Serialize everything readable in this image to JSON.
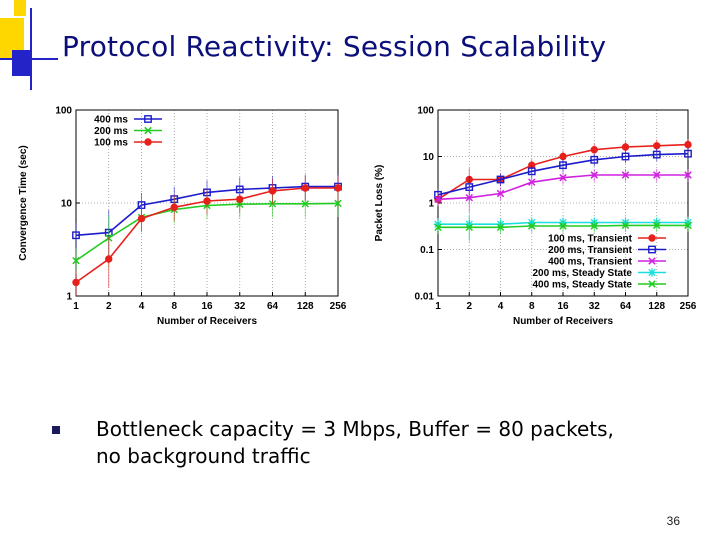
{
  "slide": {
    "title": "Protocol Reactivity: Session Scalability",
    "bullet": "Bottleneck capacity = 3 Mbps, Buffer = 80 packets, no background traffic",
    "slide_number": "36"
  },
  "colors": {
    "title": "#0b0f7a",
    "deco_yellow": "#ffd700",
    "deco_blue": "#2323c8",
    "red": "#e8201c",
    "blue": "#1c1ccc",
    "green": "#22cc22",
    "magenta": "#d020e0",
    "cyan": "#18e0e0"
  },
  "chart_data": [
    {
      "type": "line",
      "xlabel": "Number of Receivers",
      "ylabel": "Convergence Time (sec)",
      "x_scale": "log2",
      "y_scale": "log10",
      "ylim": [
        1,
        100
      ],
      "x": [
        1,
        2,
        4,
        8,
        16,
        32,
        64,
        128,
        256
      ],
      "x_tick_labels": [
        "1",
        "2",
        "4",
        "8",
        "16",
        "32",
        "64",
        "128",
        "256"
      ],
      "y_tick_labels": [
        "1",
        "10",
        "100"
      ],
      "y_ticks": [
        1,
        10,
        100
      ],
      "grid": true,
      "legend_position": "top-left",
      "series": [
        {
          "name": "400 ms",
          "color": "#1c1ccc",
          "marker": "square",
          "values": [
            4.5,
            4.8,
            9.5,
            11,
            13,
            14,
            14.5,
            15,
            15
          ]
        },
        {
          "name": "200 ms",
          "color": "#22cc22",
          "marker": "x",
          "values": [
            2.4,
            4.2,
            7,
            8.5,
            9.4,
            9.7,
            9.8,
            9.8,
            9.9
          ]
        },
        {
          "name": "100 ms",
          "color": "#e8201c",
          "marker": "circle",
          "values": [
            1.4,
            2.5,
            6.8,
            9,
            10.5,
            11,
            13.5,
            14.5,
            14.5
          ]
        }
      ]
    },
    {
      "type": "line",
      "xlabel": "Number of Receivers",
      "ylabel": "Packet Loss (%)",
      "x_scale": "log2",
      "y_scale": "log10",
      "ylim": [
        0.01,
        100
      ],
      "x": [
        1,
        2,
        4,
        8,
        16,
        32,
        64,
        128,
        256
      ],
      "x_tick_labels": [
        "1",
        "2",
        "4",
        "8",
        "16",
        "32",
        "64",
        "128",
        "256"
      ],
      "y_tick_labels": [
        "0.01",
        "0.1",
        "1",
        "10",
        "100"
      ],
      "y_ticks": [
        0.01,
        0.1,
        1,
        10,
        100
      ],
      "grid": true,
      "legend_position": "bottom-right",
      "series": [
        {
          "name": "100 ms, Transient",
          "color": "#e8201c",
          "marker": "circle",
          "values": [
            1.2,
            3.2,
            3.2,
            6.5,
            10,
            14,
            16,
            17,
            18
          ]
        },
        {
          "name": "200 ms, Transient",
          "color": "#1c1ccc",
          "marker": "square",
          "values": [
            1.5,
            2.2,
            3.2,
            4.8,
            6.5,
            8.5,
            10,
            11,
            11.5
          ]
        },
        {
          "name": "400 ms, Transient",
          "color": "#d020e0",
          "marker": "x",
          "values": [
            1.2,
            1.3,
            1.6,
            2.8,
            3.5,
            4,
            4,
            4,
            4
          ]
        },
        {
          "name": "200 ms, Steady State",
          "color": "#18e0e0",
          "marker": "star",
          "values": [
            0.35,
            0.35,
            0.35,
            0.38,
            0.38,
            0.38,
            0.38,
            0.38,
            0.38
          ]
        },
        {
          "name": "400 ms, Steady State",
          "color": "#22cc22",
          "marker": "x",
          "values": [
            0.3,
            0.3,
            0.3,
            0.32,
            0.32,
            0.32,
            0.33,
            0.33,
            0.33
          ]
        }
      ]
    }
  ]
}
